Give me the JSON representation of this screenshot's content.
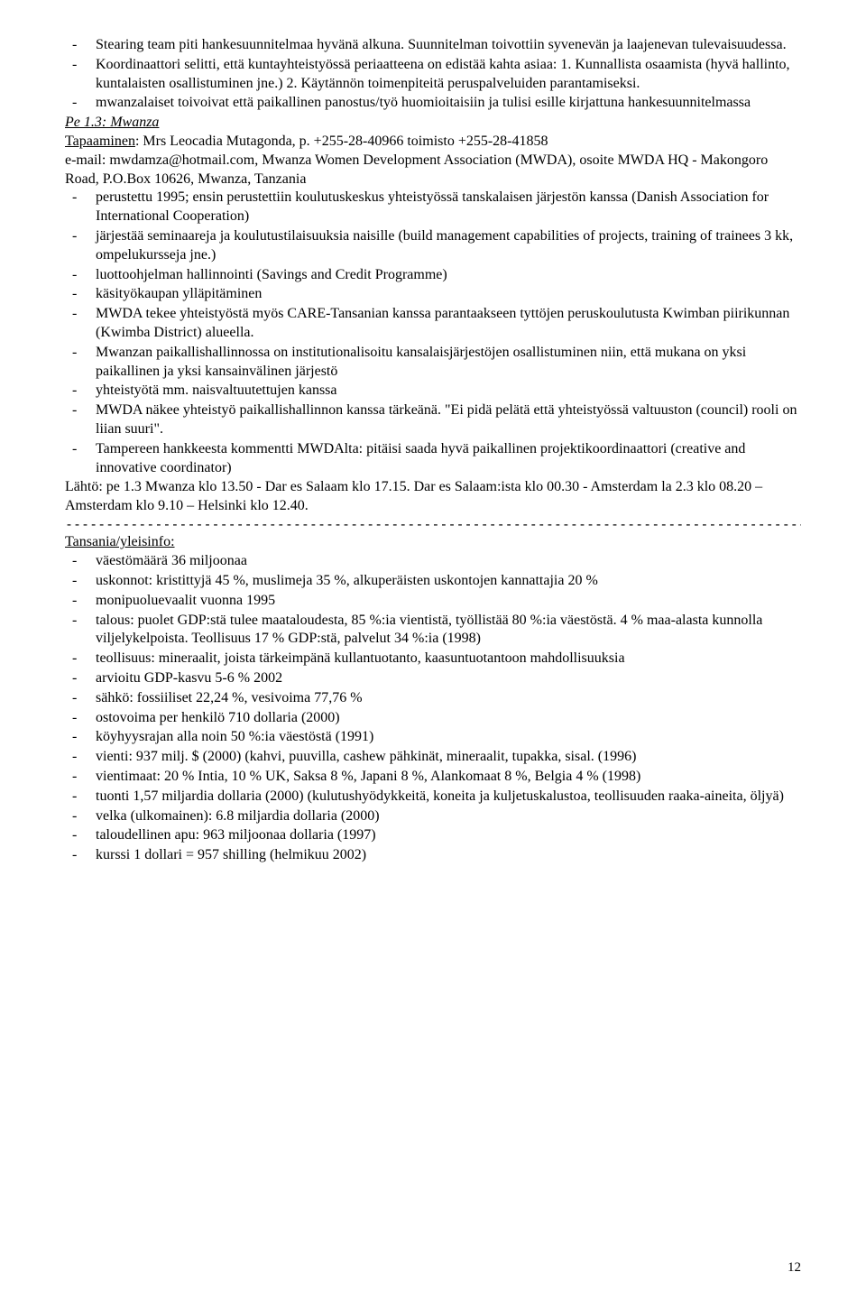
{
  "topList": [
    "Stearing team piti hankesuunnitelmaa hyvänä alkuna. Suunnitelman toivottiin syvenevän ja laajenevan tulevaisuudessa.",
    "Koordinaattori selitti, että kuntayhteistyössä periaatteena on edistää kahta asiaa: 1. Kunnallista osaamista (hyvä hallinto, kuntalaisten osallistuminen jne.) 2. Käytännön toimenpiteitä peruspalveluiden parantamiseksi.",
    "mwanzalaiset toivoivat että paikallinen panostus/työ huomioitaisiin ja tulisi esille kirjattuna hankesuunnitelmassa"
  ],
  "pe13": {
    "heading": "Pe 1.3: Mwanza",
    "tapaaminen_label": "Tapaaminen",
    "contact_line": ": Mrs Leocadia Mutagonda, p. +255-28-40966 toimisto +255-28-41858",
    "email_line": "e-mail: mwdamza@hotmail.com, Mwanza Women Development Association (MWDA), osoite MWDA HQ - Makongoro Road, P.O.Box 10626, Mwanza, Tanzania",
    "items": [
      "perustettu 1995; ensin perustettiin koulutuskeskus yhteistyössä tanskalaisen järjestön kanssa (Danish Association for International Cooperation)",
      "järjestää seminaareja ja koulutustilaisuuksia naisille (build management capabilities of projects, training of trainees 3 kk, ompelukursseja jne.)",
      "luottoohjelman hallinnointi (Savings and Credit Programme)",
      "käsityökaupan ylläpitäminen",
      "MWDA tekee yhteistyöstä myös CARE-Tansanian kanssa parantaakseen tyttöjen peruskoulutusta Kwimban piirikunnan (Kwimba District) alueella.",
      "Mwanzan paikallishallinnossa on institutionalisoitu kansalaisjärjestöjen osallistuminen niin, että mukana on yksi paikallinen ja yksi kansainvälinen järjestö",
      "yhteistyötä mm. naisvaltuutettujen kanssa",
      "MWDA näkee yhteistyö paikallishallinnon kanssa tärkeänä. \"Ei pidä pelätä että yhteistyössä valtuuston (council) rooli on liian suuri\".",
      "Tampereen hankkeesta kommentti MWDAlta: pitäisi saada hyvä paikallinen projektikoordinaattori (creative and innovative coordinator)"
    ]
  },
  "lahto": "Lähtö: pe 1.3 Mwanza klo 13.50 - Dar es Salaam klo 17.15. Dar es Salaam:ista klo 00.30 - Amsterdam la 2.3 klo 08.20 – Amsterdam klo 9.10 – Helsinki klo 12.40.",
  "divider": "------------------------------------------------------------------------------------------------------------------------",
  "tansania": {
    "heading": "Tansania/yleisinfo:",
    "items": [
      "väestömäärä 36 miljoonaa",
      "uskonnot: kristittyjä 45 %, muslimeja 35 %, alkuperäisten uskontojen kannattajia 20 %",
      "monipuoluevaalit vuonna 1995",
      "talous: puolet GDP:stä tulee maataloudesta, 85 %:ia vientistä, työllistää 80 %:ia väestöstä.  4 % maa-alasta kunnolla viljelykelpoista. Teollisuus 17 % GDP:stä, palvelut 34 %:ia (1998)",
      "teollisuus: mineraalit, joista tärkeimpänä kullantuotanto, kaasuntuotantoon mahdollisuuksia",
      "arvioitu GDP-kasvu 5-6 % 2002",
      "sähkö: fossiiliset 22,24 %, vesivoima 77,76 %",
      "ostovoima per henkilö 710 dollaria (2000)",
      "köyhyysrajan alla noin 50 %:ia väestöstä (1991)",
      "vienti: 937 milj. $ (2000) (kahvi, puuvilla, cashew pähkinät, mineraalit, tupakka, sisal. (1996)",
      "vientimaat: 20 % Intia, 10 % UK, Saksa 8 %, Japani 8 %, Alankomaat 8 %, Belgia 4 % (1998)",
      "tuonti 1,57 miljardia dollaria (2000) (kulutushyödykkeitä, koneita ja kuljetuskalustoa, teollisuuden raaka-aineita, öljyä)",
      "velka (ulkomainen): 6.8 miljardia dollaria (2000)",
      "taloudellinen apu: 963 miljoonaa dollaria (1997)",
      "kurssi 1 dollari = 957 shilling (helmikuu 2002)"
    ]
  },
  "pageNumber": "12"
}
